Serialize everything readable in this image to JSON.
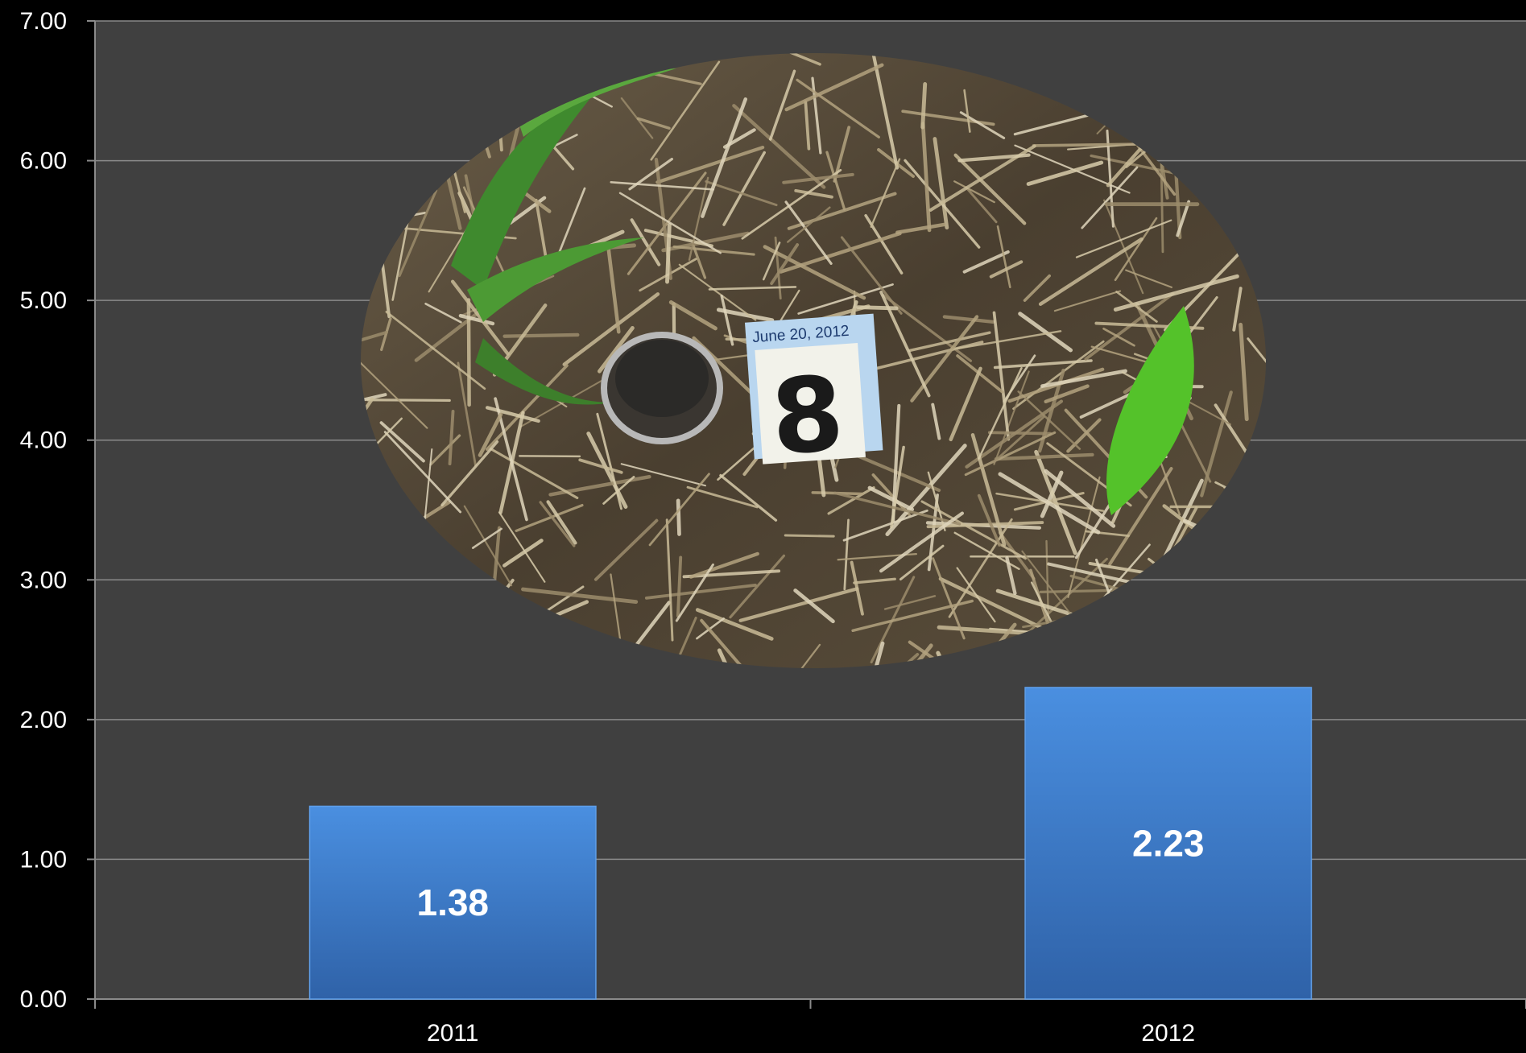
{
  "chart_data": {
    "type": "bar",
    "title": "",
    "xlabel": "",
    "ylabel": "",
    "categories": [
      "2011",
      "2012"
    ],
    "values": [
      1.38,
      2.23
    ],
    "data_labels": [
      "1.38",
      "2.23"
    ],
    "ylim": [
      0,
      7
    ],
    "yticks": [
      0,
      1,
      2,
      3,
      4,
      5,
      6,
      7
    ],
    "ytick_labels": [
      "0.00",
      "1.00",
      "2.00",
      "3.00",
      "4.00",
      "5.00",
      "6.00",
      "7.00"
    ],
    "grid": "horizontal",
    "legend": "none",
    "colors": {
      "bar": "#3b7fd4",
      "bar_dark": "#2f5f9e",
      "plot_background": "#404040",
      "page_background": "#000000",
      "gridline": "#8a8a8a",
      "text": "#ffffff"
    }
  },
  "inset_photo": {
    "note_date": "June 20, 2012",
    "number_card": "8"
  }
}
